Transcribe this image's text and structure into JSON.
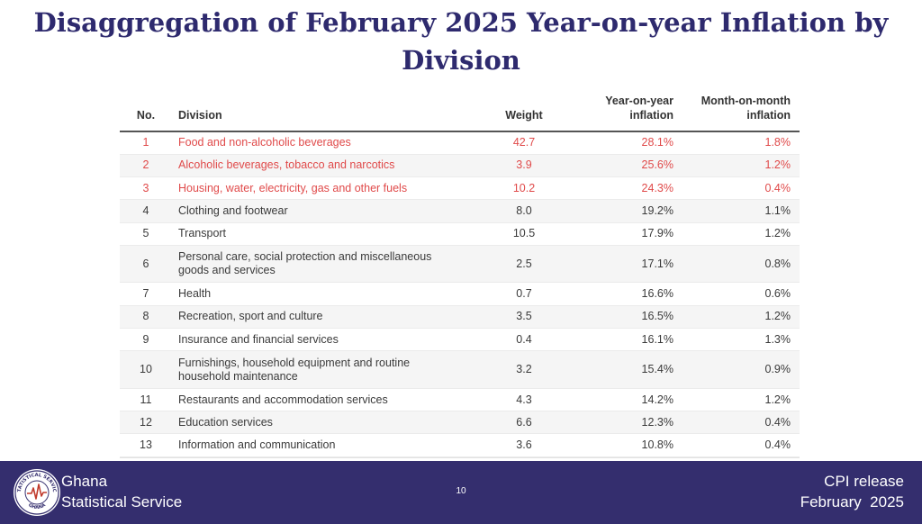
{
  "title": "Disaggregation of February 2025 Year-on-year Inflation by Division",
  "table": {
    "headers": {
      "no": "No.",
      "division": "Division",
      "weight": "Weight",
      "yoy_line1": "Year-on-year",
      "yoy_line2": "inflation",
      "mom_line1": "Month-on-month",
      "mom_line2": "inflation"
    },
    "rows": [
      {
        "no": "1",
        "division": "Food and non-alcoholic beverages",
        "weight": "42.7",
        "yoy": "28.1%",
        "mom": "1.8%",
        "highlight": true
      },
      {
        "no": "2",
        "division": "Alcoholic beverages, tobacco and narcotics",
        "weight": "3.9",
        "yoy": "25.6%",
        "mom": "1.2%",
        "highlight": true
      },
      {
        "no": "3",
        "division": "Housing, water, electricity, gas and other fuels",
        "weight": "10.2",
        "yoy": "24.3%",
        "mom": "0.4%",
        "highlight": true
      },
      {
        "no": "4",
        "division": "Clothing and footwear",
        "weight": "8.0",
        "yoy": "19.2%",
        "mom": "1.1%",
        "highlight": false
      },
      {
        "no": "5",
        "division": "Transport",
        "weight": "10.5",
        "yoy": "17.9%",
        "mom": "1.2%",
        "highlight": false
      },
      {
        "no": "6",
        "division": "Personal care, social protection and miscellaneous goods and services",
        "weight": "2.5",
        "yoy": "17.1%",
        "mom": "0.8%",
        "highlight": false,
        "tall": true
      },
      {
        "no": "7",
        "division": "Health",
        "weight": "0.7",
        "yoy": "16.6%",
        "mom": "0.6%",
        "highlight": false
      },
      {
        "no": "8",
        "division": "Recreation, sport and culture",
        "weight": "3.5",
        "yoy": "16.5%",
        "mom": "1.2%",
        "highlight": false
      },
      {
        "no": "9",
        "division": "Insurance and financial services",
        "weight": "0.4",
        "yoy": "16.1%",
        "mom": "1.3%",
        "highlight": false
      },
      {
        "no": "10",
        "division": "Furnishings, household equipment and routine household maintenance",
        "weight": "3.2",
        "yoy": "15.4%",
        "mom": "0.9%",
        "highlight": false,
        "tall": true
      },
      {
        "no": "11",
        "division": "Restaurants and accommodation services",
        "weight": "4.3",
        "yoy": "14.2%",
        "mom": "1.2%",
        "highlight": false
      },
      {
        "no": "12",
        "division": "Education services",
        "weight": "6.6",
        "yoy": "12.3%",
        "mom": "0.4%",
        "highlight": false
      },
      {
        "no": "13",
        "division": "Information and communication",
        "weight": "3.6",
        "yoy": "10.8%",
        "mom": "0.4%",
        "highlight": false
      }
    ]
  },
  "footer": {
    "org_line1": "Ghana",
    "org_line2": "Statistical Service",
    "page_number": "10",
    "release_line1": "CPI release",
    "release_line2": "February  2025",
    "logo_text_top": "STATISTICAL SERVICE",
    "logo_text_bottom": "GHANA",
    "background_color": "#342e6e",
    "highlight_color": "#e04a4a",
    "title_color": "#2e2a6e"
  }
}
